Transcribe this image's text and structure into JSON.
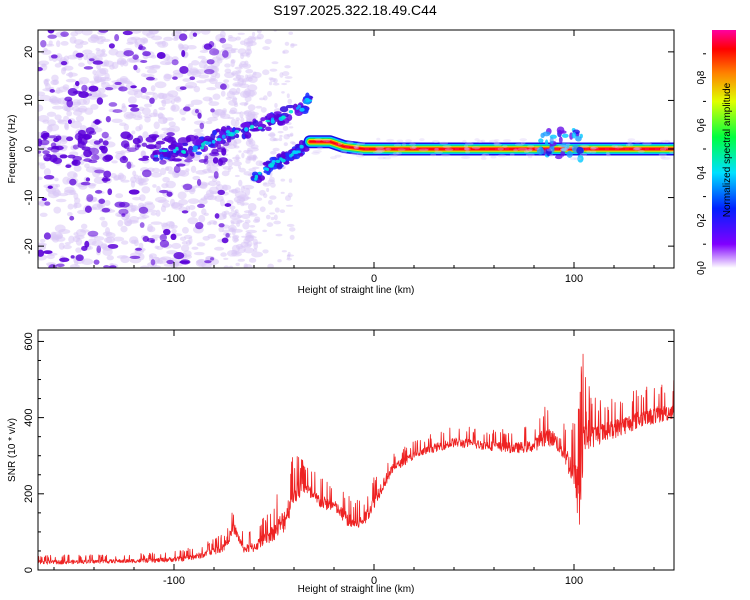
{
  "figure_title": "S197.2025.322.18.49.C44",
  "colors": {
    "snr_line": "#ee2222",
    "axis": "#000000",
    "spectrum_strong": "#5a00d8",
    "spectrum_weak": "#d8c6f6"
  },
  "chart_data": [
    {
      "type": "heatmap",
      "title": "S197.2025.322.18.49.C44",
      "xlabel": "Height of straight line (km)",
      "ylabel": "Frequency (Hz)",
      "xlim": [
        -168,
        150
      ],
      "ylim": [
        -24.5,
        24.5
      ],
      "xticks": [
        -100,
        0,
        100
      ],
      "xtick_labels": [
        "-100",
        "0",
        "100"
      ],
      "yticks": [
        -20,
        -10,
        0,
        10,
        20
      ],
      "ytick_labels": [
        "-20",
        "-10",
        "0",
        "10",
        "20"
      ],
      "colorbar": {
        "label": "Normalized spectral amplitude",
        "range": [
          0,
          1
        ],
        "ticks": [
          0.0,
          0.2,
          0.4,
          0.6,
          0.8
        ],
        "tick_labels": [
          "0.0",
          "0.2",
          "0.4",
          "0.6",
          "0.8"
        ],
        "colormap": "rainbow (purple-blue-cyan-green-yellow-red-magenta)"
      },
      "features": [
        {
          "name": "scattered noise",
          "x_range": [
            -168,
            -60
          ],
          "y_range": [
            -24,
            24
          ],
          "amplitude": 0.05
        },
        {
          "name": "rising trace upper",
          "points": [
            [
              -110,
              -1
            ],
            [
              -90,
              0
            ],
            [
              -75,
              3
            ],
            [
              -55,
              5
            ],
            [
              -38,
              8
            ],
            [
              -32,
              10
            ]
          ]
        },
        {
          "name": "rising trace lower",
          "points": [
            [
              -60,
              -6
            ],
            [
              -50,
              -3
            ],
            [
              -40,
              -1
            ],
            [
              -33,
              1
            ]
          ]
        },
        {
          "name": "carrier line",
          "points": [
            [
              -32,
              1.5
            ],
            [
              -22,
              1.5
            ],
            [
              -15,
              0.5
            ],
            [
              -5,
              0
            ],
            [
              150,
              0
            ]
          ],
          "amplitude": 1.0
        },
        {
          "name": "disturbance",
          "x_range": [
            82,
            104
          ],
          "y_range": [
            -2,
            4
          ]
        }
      ]
    },
    {
      "type": "line",
      "xlabel": "Height of straight line (km)",
      "ylabel": "SNR (10 * v/v)",
      "xlim": [
        -168,
        150
      ],
      "ylim": [
        0,
        630
      ],
      "xticks": [
        -100,
        0,
        100
      ],
      "xtick_labels": [
        "-100",
        "0",
        "100"
      ],
      "yticks": [
        0,
        200,
        400,
        600
      ],
      "ytick_labels": [
        "0",
        "200",
        "400",
        "600"
      ],
      "series": [
        {
          "name": "SNR",
          "color": "#ee2222",
          "x": [
            -168,
            -140,
            -110,
            -95,
            -85,
            -75,
            -70,
            -65,
            -60,
            -55,
            -50,
            -45,
            -40,
            -35,
            -30,
            -25,
            -20,
            -15,
            -10,
            -5,
            0,
            5,
            10,
            20,
            30,
            40,
            50,
            60,
            70,
            80,
            85,
            90,
            95,
            100,
            103,
            105,
            108,
            115,
            125,
            135,
            145,
            150
          ],
          "values": [
            20,
            22,
            25,
            30,
            40,
            60,
            110,
            55,
            60,
            80,
            100,
            130,
            200,
            220,
            190,
            175,
            170,
            140,
            120,
            130,
            180,
            230,
            270,
            300,
            320,
            335,
            330,
            325,
            320,
            325,
            350,
            345,
            310,
            250,
            180,
            370,
            350,
            360,
            380,
            400,
            410,
            420
          ],
          "upper_envelope": [
            40,
            40,
            45,
            55,
            70,
            100,
            165,
            90,
            110,
            140,
            180,
            250,
            310,
            290,
            260,
            240,
            220,
            210,
            180,
            190,
            250,
            290,
            310,
            340,
            360,
            380,
            375,
            370,
            370,
            380,
            440,
            420,
            400,
            400,
            520,
            630,
            470,
            450,
            470,
            480,
            490,
            500
          ]
        }
      ]
    }
  ]
}
